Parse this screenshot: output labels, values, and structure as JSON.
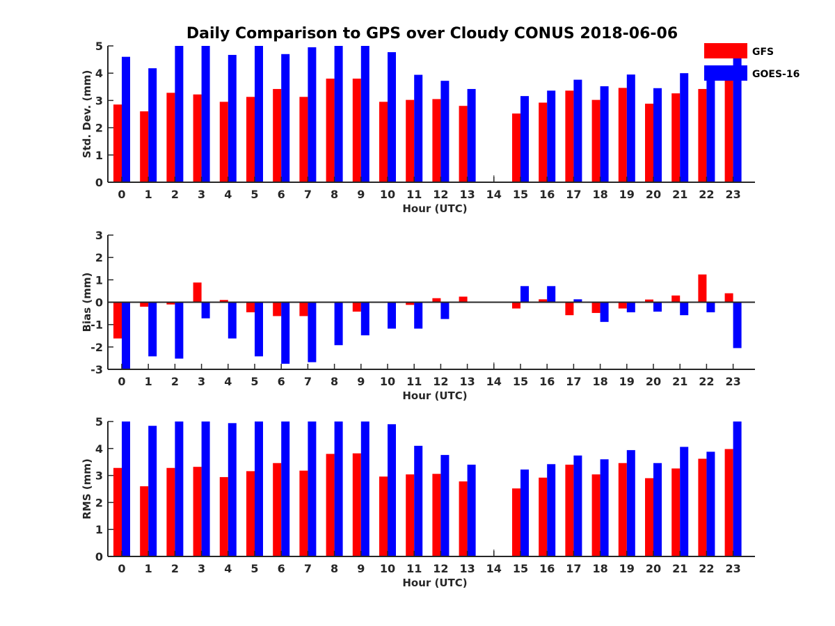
{
  "colors": {
    "GFS": "#ff0000",
    "GOES-16": "#0000ff",
    "axis": "#262626"
  },
  "legend": [
    {
      "name": "GFS",
      "color": "#ff0000"
    },
    {
      "name": "GOES-16",
      "color": "#0000ff"
    }
  ],
  "chart_data": {
    "type": "bar",
    "title": "Daily Comparison to GPS over Cloudy CONUS 2018-06-06",
    "legend_position": "top-right",
    "categories": [
      "0",
      "1",
      "2",
      "3",
      "4",
      "5",
      "6",
      "7",
      "8",
      "9",
      "10",
      "11",
      "12",
      "13",
      "14",
      "15",
      "16",
      "17",
      "18",
      "19",
      "20",
      "21",
      "22",
      "23"
    ],
    "panels": [
      {
        "ylabel": "Std. Dev. (mm)",
        "xlabel": "Hour (UTC)",
        "ylim": [
          0,
          5
        ],
        "yticks": [
          "0",
          "1",
          "2",
          "3",
          "4",
          "5"
        ],
        "series": [
          {
            "name": "GFS",
            "values": [
              2.85,
              2.6,
              3.28,
              3.22,
              2.95,
              3.13,
              3.42,
              3.13,
              3.8,
              3.8,
              2.95,
              3.02,
              3.05,
              2.8,
              null,
              2.52,
              2.92,
              3.36,
              3.02,
              3.46,
              2.88,
              3.26,
              3.42,
              4.0
            ]
          },
          {
            "name": "GOES-16",
            "values": [
              4.6,
              4.18,
              5.0,
              5.0,
              4.67,
              5.0,
              4.7,
              4.95,
              5.0,
              5.0,
              4.77,
              3.94,
              3.72,
              3.42,
              null,
              3.16,
              3.36,
              3.76,
              3.52,
              3.95,
              3.45,
              4.0,
              3.82,
              4.6
            ]
          }
        ]
      },
      {
        "ylabel": "Bias (mm)",
        "xlabel": "Hour (UTC)",
        "ylim": [
          -3,
          3
        ],
        "yticks": [
          "-3",
          "-2",
          "-1",
          "0",
          "1",
          "2",
          "3"
        ],
        "series": [
          {
            "name": "GFS",
            "values": [
              -1.62,
              -0.2,
              -0.1,
              0.88,
              0.1,
              -0.45,
              -0.62,
              -0.62,
              -0.02,
              -0.42,
              0.0,
              -0.12,
              0.18,
              0.25,
              null,
              -0.28,
              0.13,
              -0.58,
              -0.48,
              -0.28,
              0.12,
              0.3,
              1.24,
              0.4
            ]
          },
          {
            "name": "GOES-16",
            "values": [
              -3.0,
              -2.42,
              -2.52,
              -0.72,
              -1.62,
              -2.42,
              -2.75,
              -2.68,
              -1.92,
              -1.48,
              -1.18,
              -1.18,
              -0.75,
              0.0,
              null,
              0.72,
              0.72,
              0.13,
              -0.88,
              -0.45,
              -0.42,
              -0.58,
              -0.45,
              -2.05
            ]
          }
        ]
      },
      {
        "ylabel": "RMS (mm)",
        "xlabel": "Hour (UTC)",
        "ylim": [
          0,
          5
        ],
        "yticks": [
          "0",
          "1",
          "2",
          "3",
          "4",
          "5"
        ],
        "series": [
          {
            "name": "GFS",
            "values": [
              3.28,
              2.6,
              3.28,
              3.32,
              2.94,
              3.16,
              3.46,
              3.18,
              3.8,
              3.82,
              2.96,
              3.04,
              3.06,
              2.78,
              null,
              2.52,
              2.92,
              3.4,
              3.04,
              3.46,
              2.9,
              3.26,
              3.62,
              3.98
            ]
          },
          {
            "name": "GOES-16",
            "values": [
              5.0,
              4.84,
              5.0,
              5.0,
              4.94,
              5.0,
              5.0,
              5.0,
              5.0,
              5.0,
              4.9,
              4.1,
              3.76,
              3.4,
              null,
              3.22,
              3.42,
              3.74,
              3.6,
              3.94,
              3.46,
              4.06,
              3.88,
              5.0
            ]
          }
        ]
      }
    ]
  }
}
